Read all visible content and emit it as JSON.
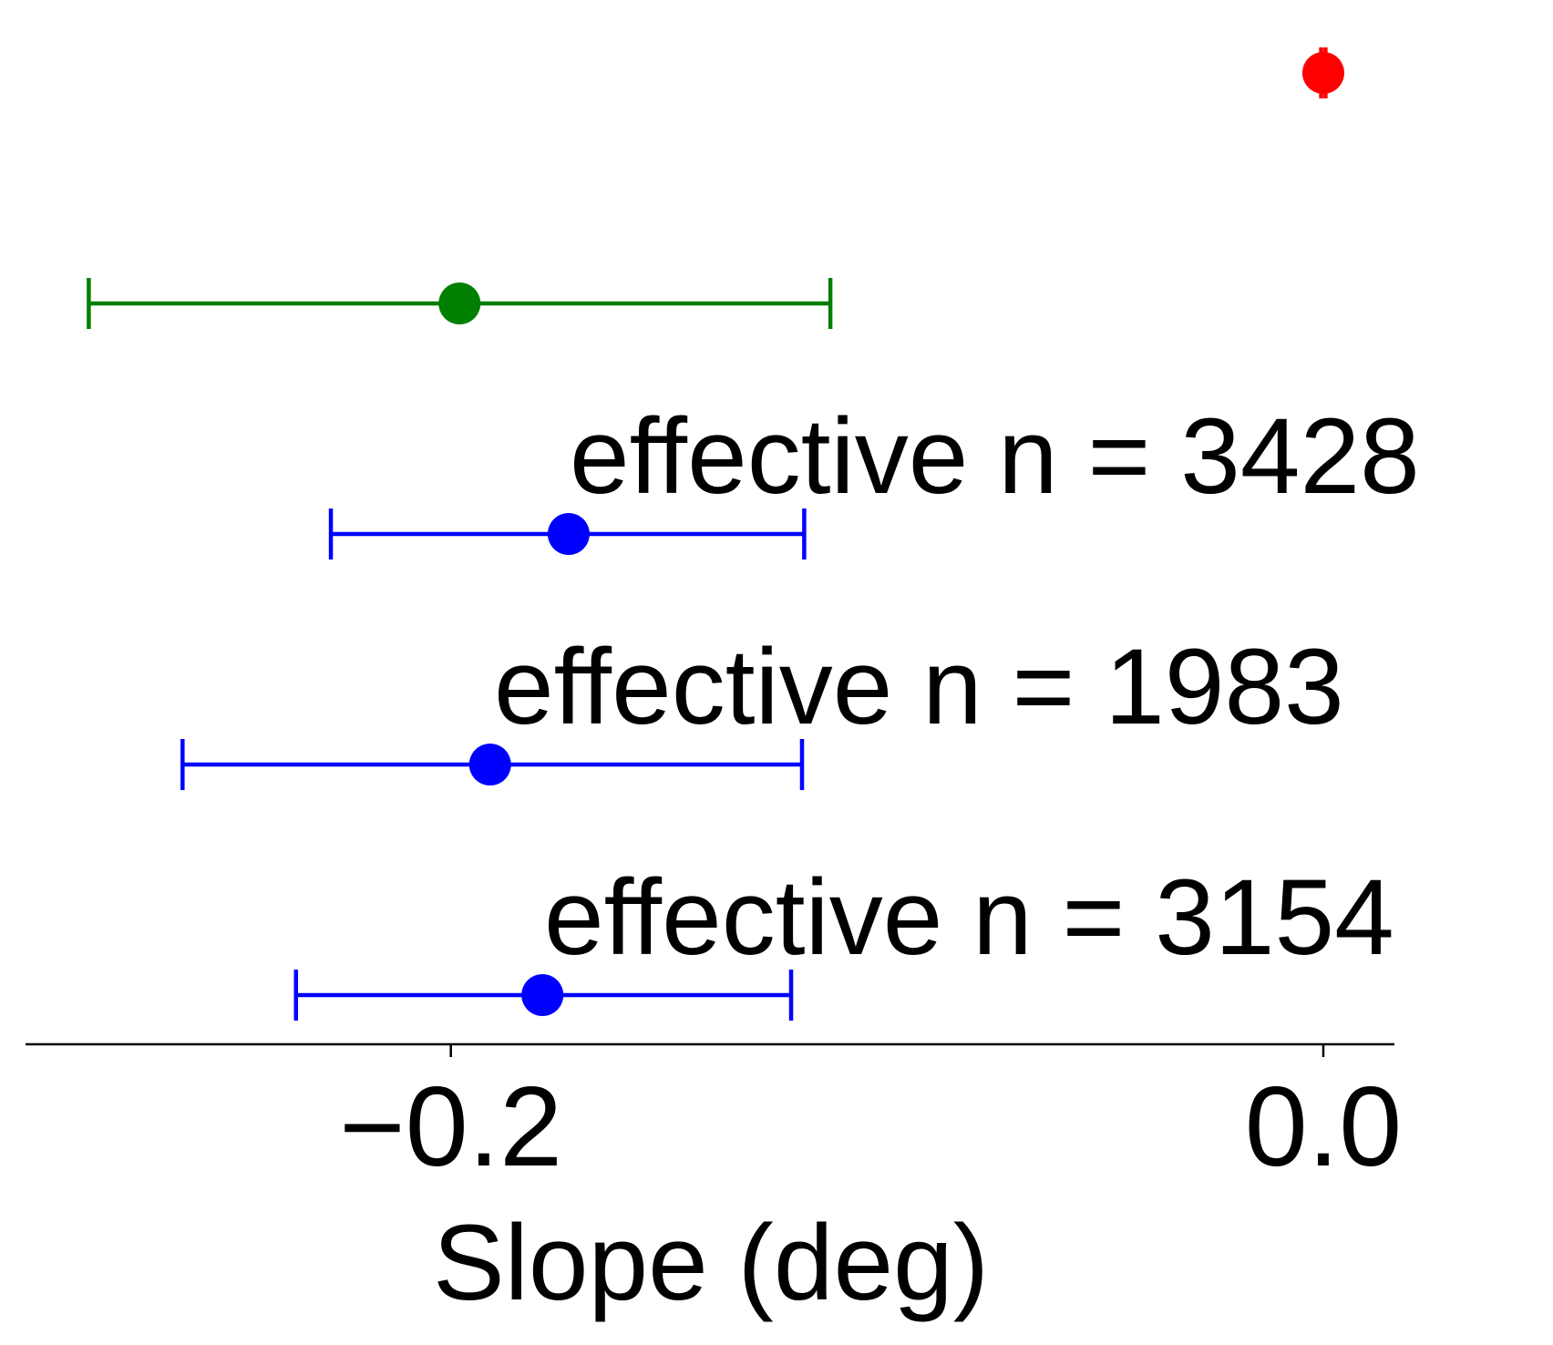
{
  "chart_data": {
    "type": "forest",
    "title": "",
    "xlabel": "Slope (deg)",
    "ylabel": "",
    "xlim": [
      -0.2975,
      0.0163
    ],
    "xticks": [
      {
        "value": -0.2,
        "label": "−0.2"
      },
      {
        "value": 0.0,
        "label": "0.0"
      }
    ],
    "grid": false,
    "legend": false,
    "rows": [
      {
        "estimate": 0.0,
        "ci_low": -0.0005,
        "ci_high": 0.0005,
        "color": "#ff0000",
        "annotation": ""
      },
      {
        "estimate": -0.198,
        "ci_low": -0.283,
        "ci_high": -0.113,
        "color": "#007f00",
        "annotation": ""
      },
      {
        "estimate": -0.173,
        "ci_low": -0.2275,
        "ci_high": -0.119,
        "color": "#0000ff",
        "annotation": "effective n = 3428"
      },
      {
        "estimate": -0.191,
        "ci_low": -0.2615,
        "ci_high": -0.1195,
        "color": "#0000ff",
        "annotation": "effective n = 1983"
      },
      {
        "estimate": -0.179,
        "ci_low": -0.2355,
        "ci_high": -0.122,
        "color": "#0000ff",
        "annotation": "effective n = 3154"
      }
    ]
  }
}
